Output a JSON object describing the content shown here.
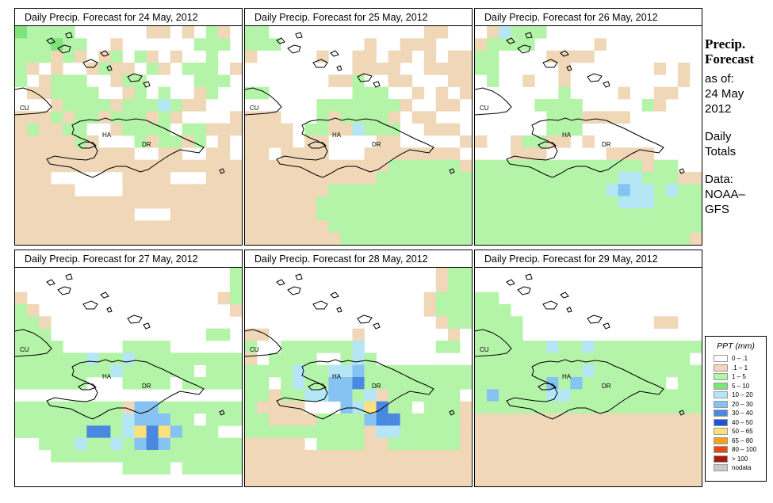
{
  "colors": {
    "c0": "#ffffff",
    "c1": "#efd7b7",
    "c2": "#b4f4a8",
    "c3": "#7fe27a",
    "c4": "#b4e6f5",
    "c5": "#86c2f2",
    "c6": "#4a88e2"
  },
  "map_labels": {
    "cu": "CU",
    "ha": "HA",
    "dr": "DR"
  },
  "panels": [
    {
      "title": "Daily Precip. Forecast for  24 May, 2012",
      "grid": [
        "3222200000011010210",
        "2223220010000002220",
        "2221210120210100200",
        "2101001211021022201",
        "2012220012200002220",
        "0112222001202001200",
        "0001222212224211000",
        "1112122122212100001",
        "1211220012222022111",
        "1111121000212212010",
        "1111111111001100110",
        "1111111111111111111",
        "1110000001111000111",
        "1111100001111111111",
        "1111111111111111111",
        "1111111111000111111",
        "1111111111111111111",
        "1111111111111111111"
      ]
    },
    {
      "title": "Daily Precip. Forecast for  25 May, 2012",
      "grid": [
        "2200000000000001100",
        "2220000000100111000",
        "1000001001101101011",
        "0000000001111001111",
        "0000000112001100011",
        "2200000002220010101",
        "0000002222222100110",
        "1110002122221011000",
        "1111022114222001110",
        "1111011000011000001",
        "1101111000111111110",
        "1111111111112222221",
        "1111111111122222222",
        "1111111222222222222",
        "1111112222222222222",
        "1111112222222222222",
        "1111111222222222222",
        "1111111122222222222"
      ]
    },
    {
      "title": "Daily Precip. Forecast for  26 May, 2012",
      "grid": [
        "0142220000000000000",
        "1222200000100000000",
        "2200001111000000000",
        "2200000100000001010",
        "0200100100000000010",
        "0000000200001001100",
        "0000022220000021000",
        "0000002221111000000",
        "0000002220000000000",
        "1001221101000000000",
        "0001110000011110000",
        "2222222222222212200",
        "2222222222224422211",
        "2222222222245442422",
        "2222222222224442222",
        "2222222222222222222",
        "2222222222222222222",
        "2222222222222222221"
      ]
    },
    {
      "title": "Daily Precip. Forecast for  27 May, 2012",
      "grid": [
        "0000000000000000002",
        "0000000000000000002",
        "1000000000000000012",
        "2100000000000000001",
        "2210000000000000000",
        "2220000000000000220",
        "2222000002222000000",
        "2222224224222222222",
        "2222222242222220222",
        "2222220002222022222",
        "0000000000000000000",
        "2222222221552222222",
        "2222222224555220222",
        "2222226624767522200",
        "0022242242565222222",
        "0002222222222222222",
        "0000000002222022222",
        "0000000000000000000"
      ]
    },
    {
      "title": "Daily Precip. Forecast for  28 May, 2012",
      "grid": [
        "0000000000000000122",
        "0000000000000000122",
        "0000000000000001222",
        "0000000000000001222",
        "0000000000000000122",
        "1100000001000000010",
        "2002222224000000220",
        "1022220024200000000",
        "2222422445222222222",
        "2202422556222222222",
        "2212244552412222220",
        "2111100054762202221",
        "2211112222566222221",
        "2222222222144222221",
        "1111102222112222221",
        "1111111111111111111",
        "1111111111111111111",
        "1111111111111111111"
      ]
    },
    {
      "title": "Daily Precip. Forecast for  29 May, 2012",
      "grid": [
        "0000000000000000000",
        "0000000000000000000",
        "2200000000000000000",
        "2220000000000000000",
        "2222000000000001100",
        "2222000000000000000",
        "2222224224222222222",
        "2222222222222222220",
        "2222222224222222222",
        "2222225252222222022",
        "2522224422222222222",
        "2222222222222222222",
        "1111111111111111111",
        "1111111111111111111",
        "1111111111111111111",
        "1111111111111111111",
        "1111111111111111111",
        "1111111111111111111"
      ]
    }
  ],
  "side": {
    "title_line1": "Precip.",
    "title_line2": "Forecast",
    "asof": "as of:",
    "date_line1": "24 May",
    "date_line2": "2012",
    "totals_line1": "Daily",
    "totals_line2": "Totals",
    "data_line1": "Data:",
    "data_line2": "NOAA–",
    "data_line3": "GFS"
  },
  "legend": {
    "title": "PPT (mm)",
    "items": [
      {
        "label": "0 – .1",
        "color": "#ffffff"
      },
      {
        "label": ".1 – 1",
        "color": "#efd7b7"
      },
      {
        "label": "1 – 5",
        "color": "#b4f4a8"
      },
      {
        "label": "5 – 10",
        "color": "#7fe27a"
      },
      {
        "label": "10 – 20",
        "color": "#b4e6f5"
      },
      {
        "label": "20 – 30",
        "color": "#86c2f2"
      },
      {
        "label": "30 – 40",
        "color": "#4a88e2"
      },
      {
        "label": "40 – 50",
        "color": "#1e54d2"
      },
      {
        "label": "50 – 65",
        "color": "#fde17a"
      },
      {
        "label": "65 – 80",
        "color": "#f7a11a"
      },
      {
        "label": "80 – 100",
        "color": "#e84b12"
      },
      {
        "label": "> 100",
        "color": "#a51a0e"
      },
      {
        "label": "nodata",
        "color": "#c9c9c9"
      }
    ]
  }
}
